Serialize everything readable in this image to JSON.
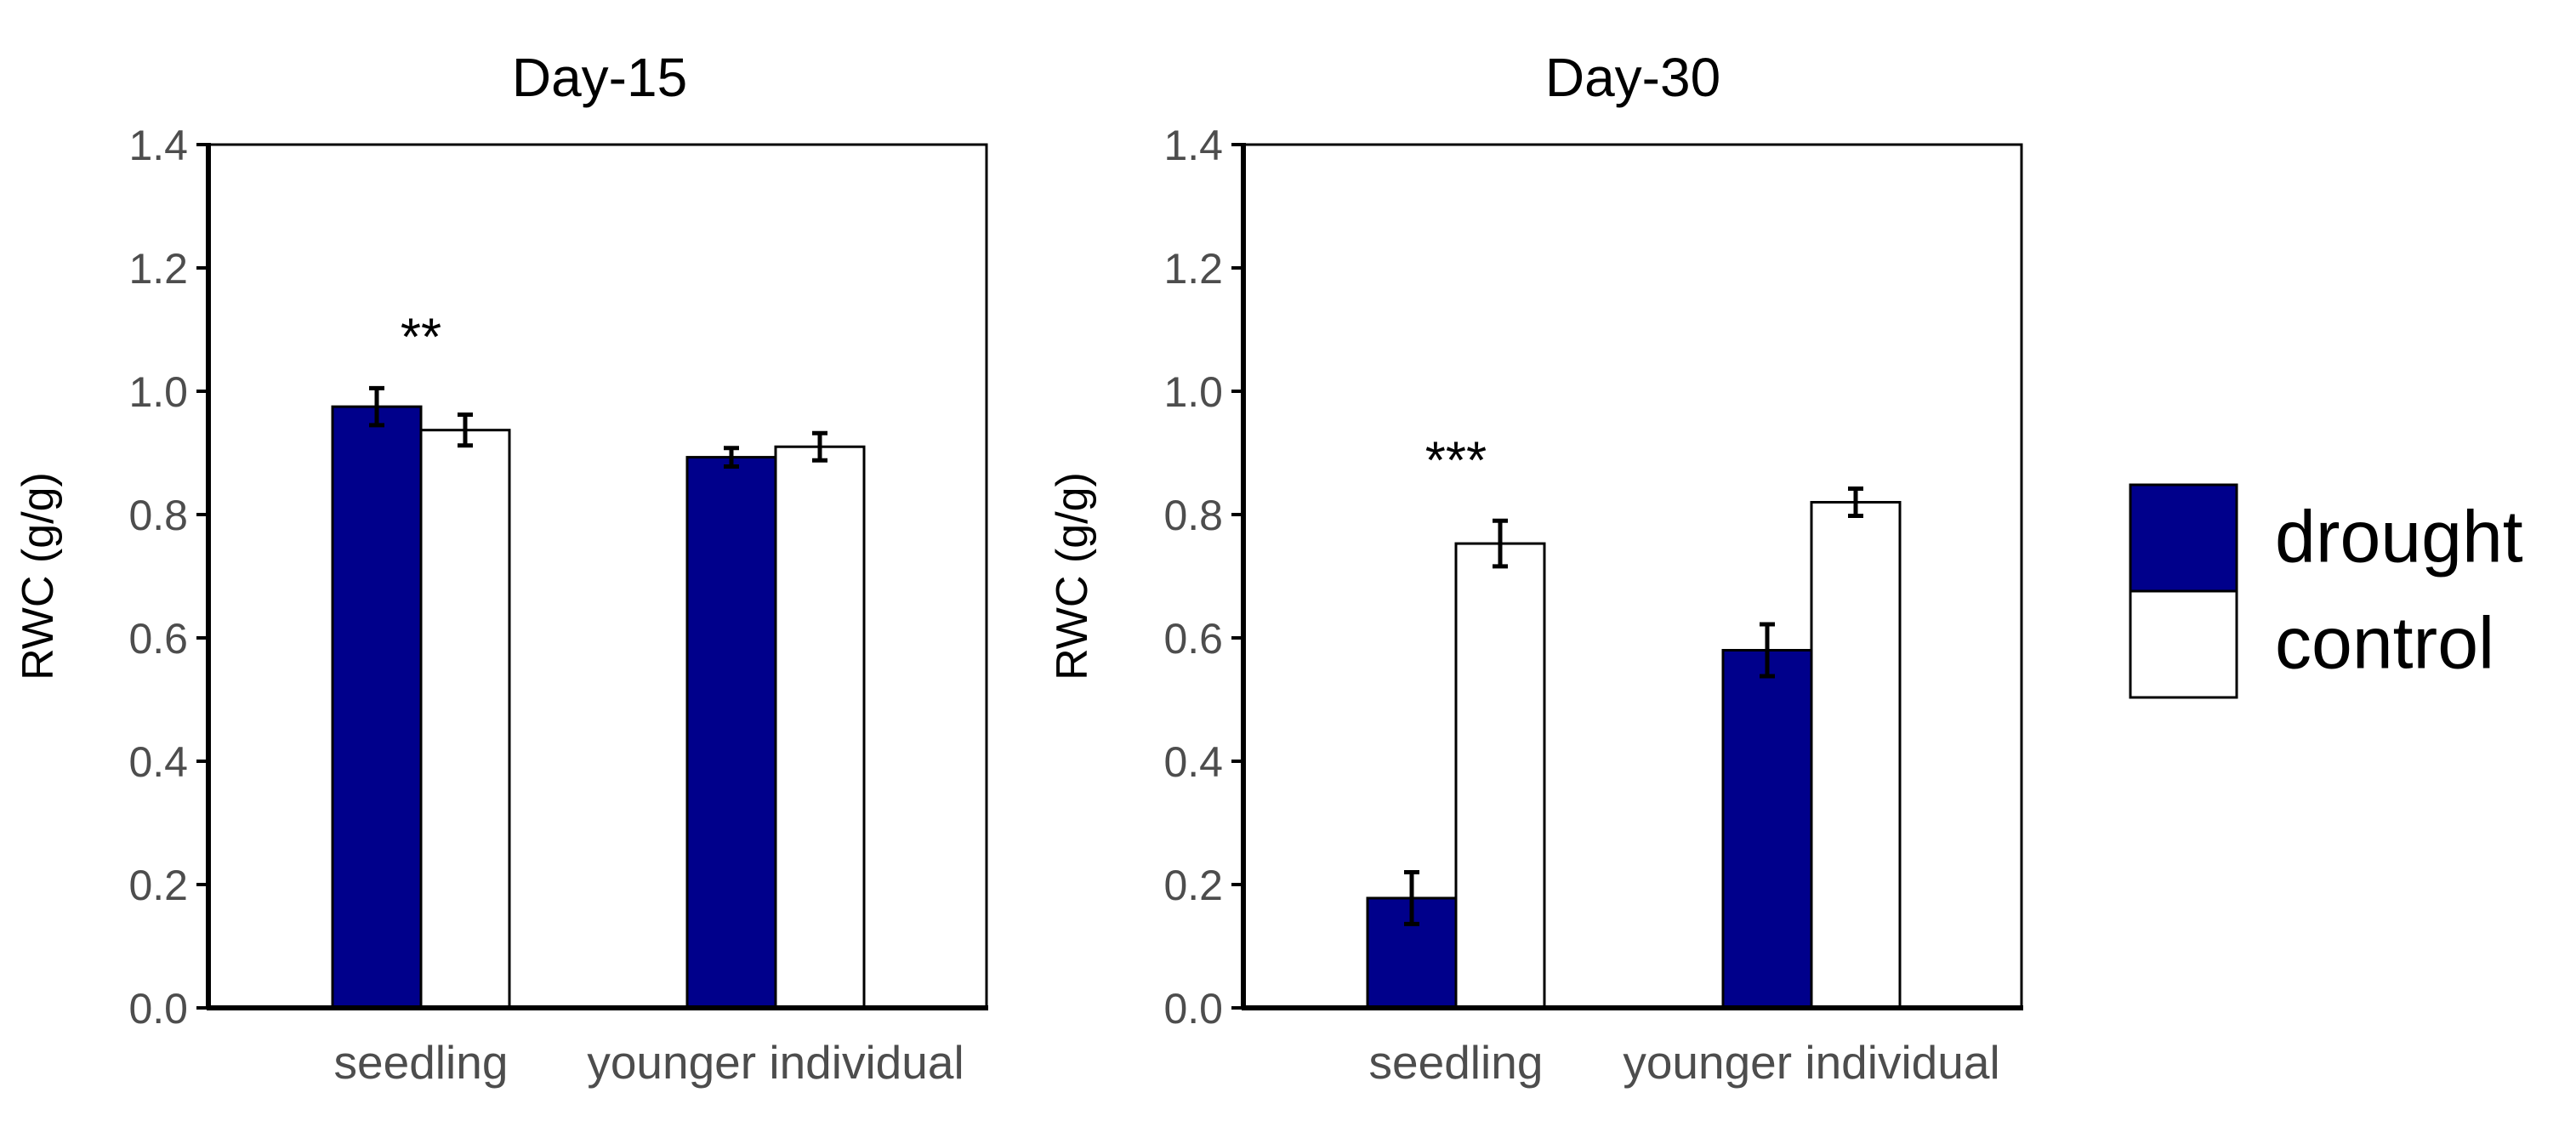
{
  "chart_data": [
    {
      "type": "bar",
      "title": "Day-15",
      "xlabel": "",
      "ylabel": "RWC (g/g)",
      "ylim": [
        0,
        1.4
      ],
      "yticks": [
        "0.0",
        "0.2",
        "0.4",
        "0.6",
        "0.8",
        "1.0",
        "1.2",
        "1.4"
      ],
      "categories": [
        "seedling",
        "younger individual"
      ],
      "series": [
        {
          "name": "drought",
          "values": [
            0.975,
            0.893
          ],
          "errors": [
            0.03,
            0.015
          ]
        },
        {
          "name": "control",
          "values": [
            0.937,
            0.91
          ],
          "errors": [
            0.025,
            0.022
          ]
        }
      ],
      "annotations": [
        {
          "text": "**",
          "category": "seedling",
          "y": 1.1
        }
      ]
    },
    {
      "type": "bar",
      "title": "Day-30",
      "xlabel": "",
      "ylabel": "RWC (g/g)",
      "ylim": [
        0,
        1.4
      ],
      "yticks": [
        "0.0",
        "0.2",
        "0.4",
        "0.6",
        "0.8",
        "1.0",
        "1.2",
        "1.4"
      ],
      "categories": [
        "seedling",
        "younger individual"
      ],
      "series": [
        {
          "name": "drought",
          "values": [
            0.178,
            0.58
          ],
          "errors": [
            0.042,
            0.042
          ]
        },
        {
          "name": "control",
          "values": [
            0.753,
            0.82
          ],
          "errors": [
            0.037,
            0.022
          ]
        }
      ],
      "annotations": [
        {
          "text": "***",
          "category": "seedling",
          "y": 0.9
        }
      ]
    }
  ],
  "legend": {
    "placement": "right",
    "items": [
      {
        "label": "drought",
        "color": "#00008b"
      },
      {
        "label": "control",
        "color": "#ffffff"
      }
    ]
  },
  "colors": {
    "drought": "#00008b",
    "control": "#ffffff",
    "axis": "#000000",
    "tick_label": "#4d4d4d"
  }
}
